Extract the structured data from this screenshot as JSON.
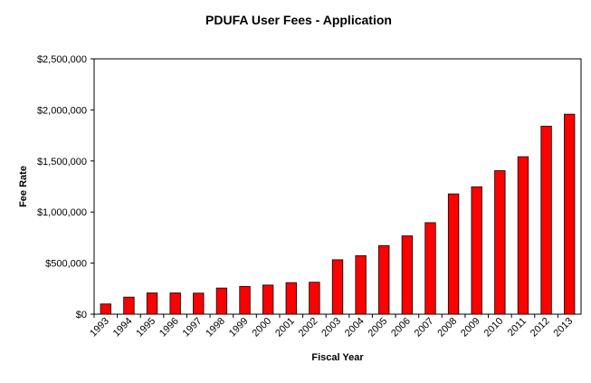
{
  "chart_data": {
    "type": "bar",
    "title": "PDUFA  User Fees - Application",
    "xlabel": "Fiscal Year",
    "ylabel": "Fee Rate",
    "ylim": [
      0,
      2500000
    ],
    "yticks": [
      0,
      500000,
      1000000,
      1500000,
      2000000,
      2500000
    ],
    "ytick_labels": [
      "$0",
      "$500,000",
      "$1,000,000",
      "$1,500,000",
      "$2,000,000",
      "$2,500,000"
    ],
    "categories": [
      "1993",
      "1994",
      "1995",
      "1996",
      "1997",
      "1998",
      "1999",
      "2000",
      "2001",
      "2002",
      "2003",
      "2004",
      "2005",
      "2006",
      "2007",
      "2008",
      "2009",
      "2010",
      "2011",
      "2012",
      "2013"
    ],
    "values": [
      100000,
      167000,
      208000,
      208000,
      206000,
      256000,
      272000,
      285000,
      309000,
      313000,
      533000,
      573000,
      672000,
      767000,
      896000,
      1178000,
      1247000,
      1405000,
      1542000,
      1841000,
      1958000
    ],
    "bar_color": "#ff0000",
    "grid": false,
    "legend": "none"
  }
}
